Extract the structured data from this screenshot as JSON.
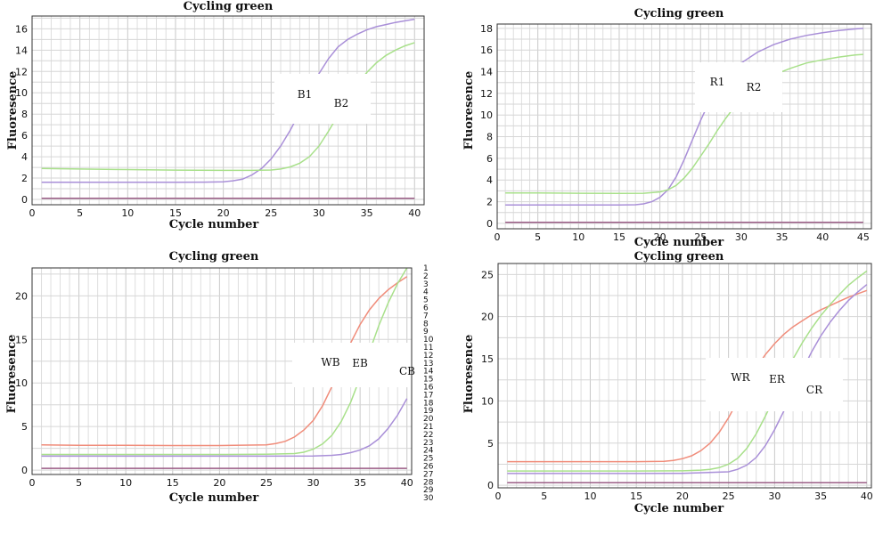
{
  "chart_data": [
    {
      "type": "line",
      "title": "Cycling green",
      "xlabel": "Cycle number",
      "ylabel": "Fluoresence",
      "xlim": [
        0,
        41
      ],
      "ylim": [
        -0.5,
        17.2
      ],
      "xticks": [
        0,
        5,
        10,
        15,
        20,
        25,
        30,
        35,
        40
      ],
      "yticks": [
        0,
        2,
        4,
        6,
        8,
        10,
        12,
        14,
        16
      ],
      "grid": true,
      "series": [
        {
          "name": "B1",
          "color": "#a98fd8",
          "x": [
            1,
            5,
            10,
            15,
            18,
            20,
            21,
            22,
            23,
            24,
            25,
            26,
            27,
            28,
            29,
            30,
            31,
            32,
            33,
            34,
            35,
            36,
            37,
            38,
            39,
            40
          ],
          "y": [
            1.6,
            1.6,
            1.6,
            1.6,
            1.62,
            1.65,
            1.75,
            1.9,
            2.3,
            2.9,
            3.8,
            5.0,
            6.5,
            8.2,
            10.0,
            11.8,
            13.2,
            14.3,
            15.0,
            15.5,
            15.9,
            16.2,
            16.4,
            16.6,
            16.75,
            16.9
          ]
        },
        {
          "name": "B2",
          "color": "#a8e08a",
          "x": [
            1,
            5,
            10,
            15,
            20,
            23,
            25,
            26,
            27,
            28,
            29,
            30,
            31,
            32,
            33,
            34,
            35,
            36,
            37,
            38,
            39,
            40
          ],
          "y": [
            2.9,
            2.85,
            2.8,
            2.75,
            2.72,
            2.72,
            2.76,
            2.85,
            3.05,
            3.4,
            4.0,
            5.0,
            6.4,
            7.9,
            9.4,
            10.8,
            11.9,
            12.8,
            13.5,
            14.0,
            14.4,
            14.7
          ]
        },
        {
          "name": "",
          "color": "#9b5d86",
          "x": [
            1,
            40
          ],
          "y": [
            0.1,
            0.1
          ]
        }
      ],
      "labels": [
        "B1",
        "B2"
      ]
    },
    {
      "type": "line",
      "title": "Cycling green",
      "xlabel": "Cycle number",
      "ylabel": "Fluoresence",
      "xlim": [
        0,
        46
      ],
      "ylim": [
        -0.5,
        18.4
      ],
      "xticks": [
        0,
        5,
        10,
        15,
        20,
        25,
        30,
        35,
        40,
        45
      ],
      "yticks": [
        0,
        2,
        4,
        6,
        8,
        10,
        12,
        14,
        16,
        18
      ],
      "grid": true,
      "series": [
        {
          "name": "R1",
          "color": "#a98fd8",
          "x": [
            1,
            5,
            10,
            15,
            17,
            18,
            19,
            20,
            21,
            22,
            23,
            24,
            25,
            26,
            27,
            28,
            29,
            30,
            32,
            34,
            36,
            38,
            40,
            42,
            44,
            45
          ],
          "y": [
            1.7,
            1.7,
            1.7,
            1.7,
            1.72,
            1.8,
            2.0,
            2.4,
            3.1,
            4.3,
            5.9,
            7.7,
            9.5,
            11.1,
            12.4,
            13.4,
            14.2,
            14.8,
            15.8,
            16.5,
            17.0,
            17.35,
            17.6,
            17.8,
            17.95,
            18.0
          ]
        },
        {
          "name": "R2",
          "color": "#a8e08a",
          "x": [
            1,
            5,
            10,
            15,
            18,
            20,
            21,
            22,
            23,
            24,
            25,
            26,
            27,
            28,
            29,
            30,
            32,
            34,
            36,
            38,
            40,
            42,
            44,
            45
          ],
          "y": [
            2.8,
            2.8,
            2.78,
            2.76,
            2.78,
            2.9,
            3.1,
            3.5,
            4.2,
            5.1,
            6.2,
            7.3,
            8.5,
            9.6,
            10.6,
            11.5,
            12.8,
            13.7,
            14.3,
            14.8,
            15.1,
            15.35,
            15.55,
            15.6
          ]
        },
        {
          "name": "",
          "color": "#9b5d86",
          "x": [
            1,
            45
          ],
          "y": [
            0.1,
            0.1
          ]
        }
      ],
      "labels": [
        "R1",
        "R2"
      ]
    },
    {
      "type": "line",
      "title": "Cycling green",
      "xlabel": "Cycle number",
      "ylabel": "Fluoresence",
      "xlim": [
        0,
        40.5
      ],
      "ylim": [
        -0.5,
        23.2
      ],
      "xticks": [
        0,
        5,
        10,
        15,
        20,
        25,
        30,
        35,
        40
      ],
      "yticks": [
        0,
        5,
        10,
        15,
        20
      ],
      "grid": true,
      "series": [
        {
          "name": "WB",
          "color": "#f08c7a",
          "x": [
            1,
            5,
            10,
            15,
            20,
            25,
            26,
            27,
            28,
            29,
            30,
            31,
            32,
            33,
            34,
            35,
            36,
            37,
            38,
            39,
            40
          ],
          "y": [
            2.9,
            2.85,
            2.85,
            2.82,
            2.82,
            2.9,
            3.05,
            3.3,
            3.8,
            4.6,
            5.7,
            7.4,
            9.6,
            12.1,
            14.6,
            16.7,
            18.4,
            19.7,
            20.7,
            21.5,
            22.2
          ]
        },
        {
          "name": "EB",
          "color": "#a8e08a",
          "x": [
            1,
            5,
            10,
            15,
            20,
            25,
            28,
            29,
            30,
            31,
            32,
            33,
            34,
            35,
            36,
            37,
            38,
            39,
            40
          ],
          "y": [
            1.8,
            1.8,
            1.8,
            1.8,
            1.8,
            1.82,
            1.9,
            2.05,
            2.4,
            3.0,
            4.0,
            5.6,
            7.8,
            10.6,
            13.6,
            16.6,
            19.2,
            21.4,
            23.2
          ]
        },
        {
          "name": "CB",
          "color": "#a98fd8",
          "x": [
            1,
            5,
            10,
            15,
            20,
            25,
            30,
            32,
            33,
            34,
            35,
            36,
            37,
            38,
            39,
            40
          ],
          "y": [
            1.6,
            1.6,
            1.6,
            1.6,
            1.6,
            1.6,
            1.62,
            1.7,
            1.8,
            2.0,
            2.3,
            2.8,
            3.6,
            4.8,
            6.3,
            8.2
          ]
        },
        {
          "name": "",
          "color": "#9b5d86",
          "x": [
            1,
            40
          ],
          "y": [
            0.2,
            0.2
          ]
        }
      ],
      "labels": [
        "WB",
        "EB",
        "CB"
      ],
      "row_numbers": [
        "1",
        "2",
        "3",
        "4",
        "5",
        "6",
        "7",
        "8",
        "9",
        "10",
        "11",
        "12",
        "13",
        "14",
        "15",
        "16",
        "17",
        "18",
        "19",
        "20",
        "21",
        "22",
        "23",
        "24",
        "25",
        "26",
        "27",
        "28",
        "29",
        "30"
      ]
    },
    {
      "type": "line",
      "title": "Cycling green",
      "xlabel": "Cycle number",
      "ylabel": "Fluoresence",
      "xlim": [
        0,
        40.5
      ],
      "ylim": [
        -0.3,
        26.3
      ],
      "xticks": [
        0,
        5,
        10,
        15,
        20,
        25,
        30,
        35,
        40
      ],
      "yticks": [
        0,
        5,
        10,
        15,
        20,
        25
      ],
      "grid": true,
      "series": [
        {
          "name": "WR",
          "color": "#f08c7a",
          "x": [
            1,
            5,
            10,
            15,
            18,
            19,
            20,
            21,
            22,
            23,
            24,
            25,
            26,
            27,
            28,
            29,
            30,
            31,
            32,
            33,
            34,
            35,
            36,
            37,
            38,
            39,
            40
          ],
          "y": [
            2.8,
            2.8,
            2.8,
            2.8,
            2.85,
            2.95,
            3.15,
            3.5,
            4.1,
            5.0,
            6.3,
            8.0,
            10.0,
            12.0,
            13.9,
            15.5,
            16.8,
            17.9,
            18.8,
            19.5,
            20.2,
            20.8,
            21.3,
            21.8,
            22.3,
            22.7,
            23.1
          ]
        },
        {
          "name": "ER",
          "color": "#a8e08a",
          "x": [
            1,
            5,
            10,
            15,
            20,
            22,
            23,
            24,
            25,
            26,
            27,
            28,
            29,
            30,
            31,
            32,
            33,
            34,
            35,
            36,
            37,
            38,
            39,
            40
          ],
          "y": [
            1.7,
            1.7,
            1.7,
            1.7,
            1.72,
            1.8,
            1.9,
            2.1,
            2.5,
            3.2,
            4.4,
            6.1,
            8.2,
            10.5,
            12.8,
            15.0,
            16.9,
            18.6,
            20.1,
            21.4,
            22.6,
            23.7,
            24.6,
            25.4
          ]
        },
        {
          "name": "CR",
          "color": "#a98fd8",
          "x": [
            1,
            5,
            10,
            15,
            20,
            25,
            26,
            27,
            28,
            29,
            30,
            31,
            32,
            33,
            34,
            35,
            36,
            37,
            38,
            39,
            40
          ],
          "y": [
            1.4,
            1.4,
            1.4,
            1.4,
            1.42,
            1.6,
            1.9,
            2.4,
            3.3,
            4.7,
            6.6,
            8.8,
            11.2,
            13.6,
            15.8,
            17.7,
            19.3,
            20.7,
            21.9,
            22.9,
            23.8
          ]
        },
        {
          "name": "",
          "color": "#9b5d86",
          "x": [
            1,
            40
          ],
          "y": [
            0.3,
            0.3
          ]
        }
      ],
      "labels": [
        "WR",
        "ER",
        "CR"
      ]
    }
  ]
}
